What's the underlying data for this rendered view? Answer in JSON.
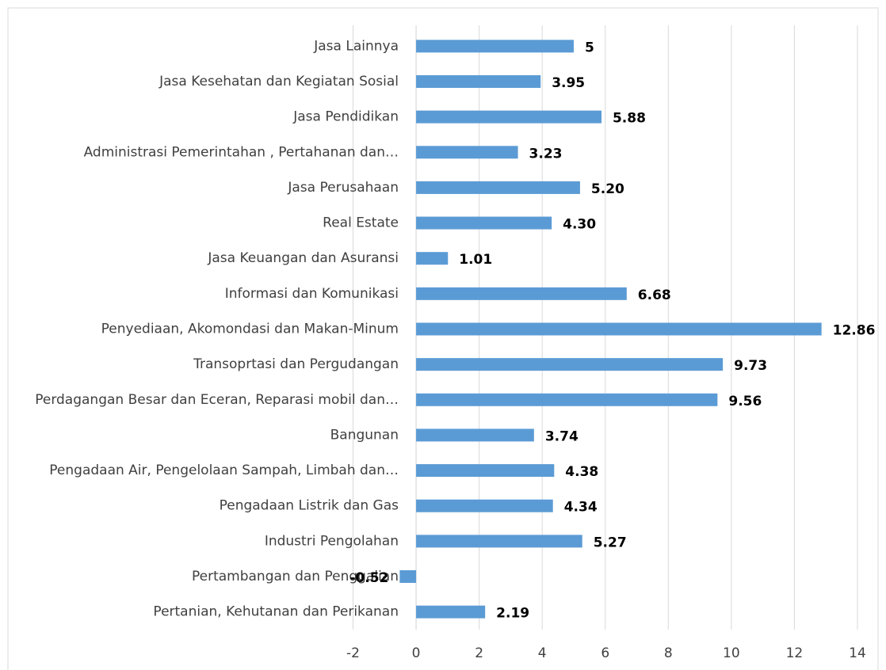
{
  "chart_data": {
    "type": "hbar",
    "categories": [
      "Jasa Lainnya",
      "Jasa Kesehatan dan Kegiatan Sosial",
      "Jasa Pendidikan",
      "Administrasi Pemerintahan , Pertahanan dan…",
      "Jasa Perusahaan",
      "Real Estate",
      "Jasa Keuangan dan Asuransi",
      "Informasi dan Komunikasi",
      "Penyediaan, Akomondasi dan Makan-Minum",
      "Transoprtasi dan Pergudangan",
      "Perdagangan Besar dan Eceran, Reparasi mobil dan…",
      "Bangunan",
      "Pengadaan Air, Pengelolaan Sampah, Limbah dan…",
      "Pengadaan Listrik dan Gas",
      "Industri Pengolahan",
      "Pertambangan dan Penggalian",
      "Pertanian, Kehutanan dan Perikanan"
    ],
    "values": [
      5,
      3.95,
      5.88,
      3.23,
      5.2,
      4.3,
      1.01,
      6.68,
      12.86,
      9.73,
      9.56,
      3.74,
      4.38,
      4.34,
      5.27,
      -0.52,
      2.19
    ],
    "value_labels": [
      "5",
      "3.95",
      "5.88",
      "3.23",
      "5.20",
      "4.30",
      "1.01",
      "6.68",
      "12.86",
      "9.73",
      "9.56",
      "3.74",
      "4.38",
      "4.34",
      "5.27",
      "-0.52",
      "2.19"
    ],
    "color": "#5b9bd5",
    "xlim": [
      -2,
      14
    ],
    "xticks": [
      -2,
      0,
      2,
      4,
      6,
      8,
      10,
      12,
      14
    ],
    "grid": true
  }
}
